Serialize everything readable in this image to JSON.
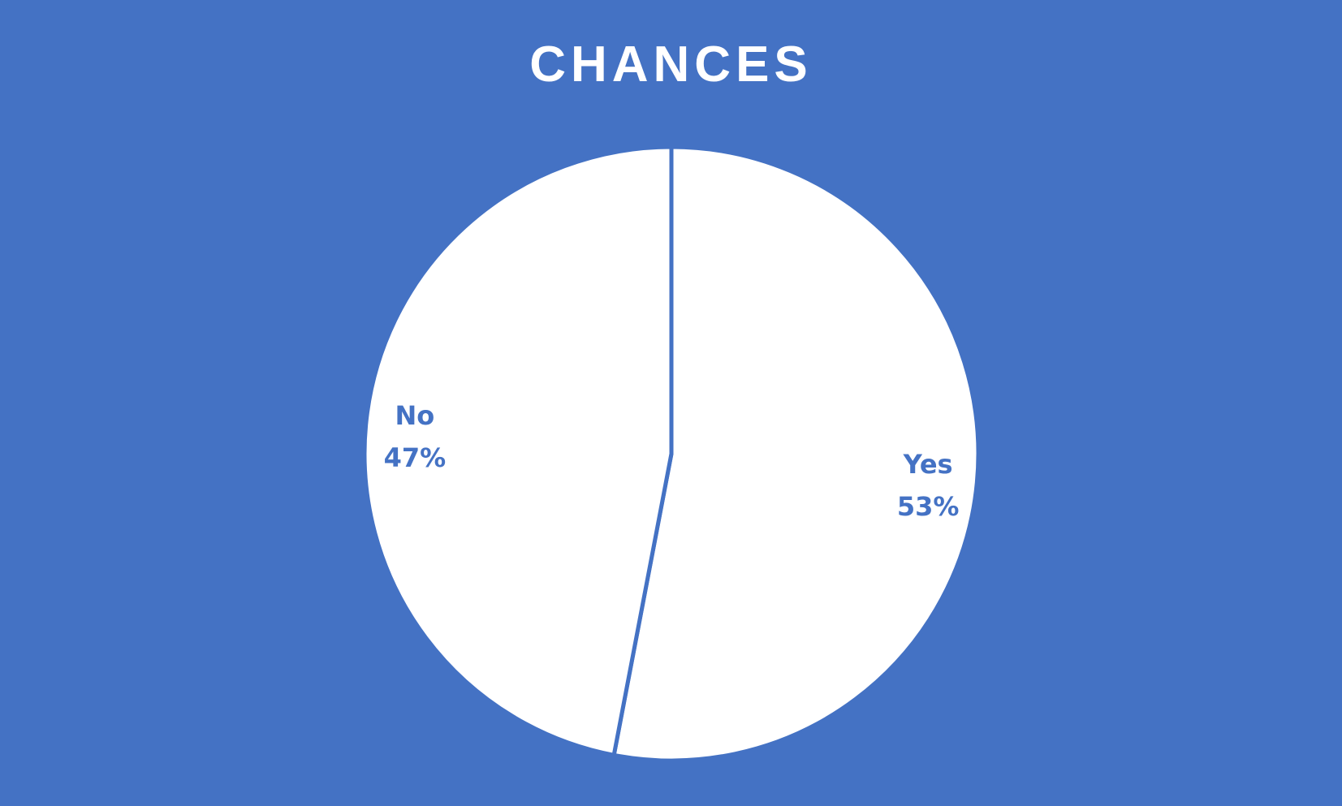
{
  "chart_data": {
    "type": "pie",
    "title": "CHANCES",
    "categories": [
      "Yes",
      "No"
    ],
    "values": [
      53,
      47
    ],
    "data_labels": {
      "Yes": {
        "name": "Yes",
        "percent": "53%"
      },
      "No": {
        "name": "No",
        "percent": "47%"
      }
    },
    "legend": "none",
    "start_angle_deg": 0,
    "direction": "clockwise"
  },
  "colors": {
    "background": "#4472C4",
    "slice_fill": "#FFFFFF",
    "slice_border": "#4472C4",
    "label_text": "#4472C4",
    "title_text": "#FFFFFF"
  }
}
